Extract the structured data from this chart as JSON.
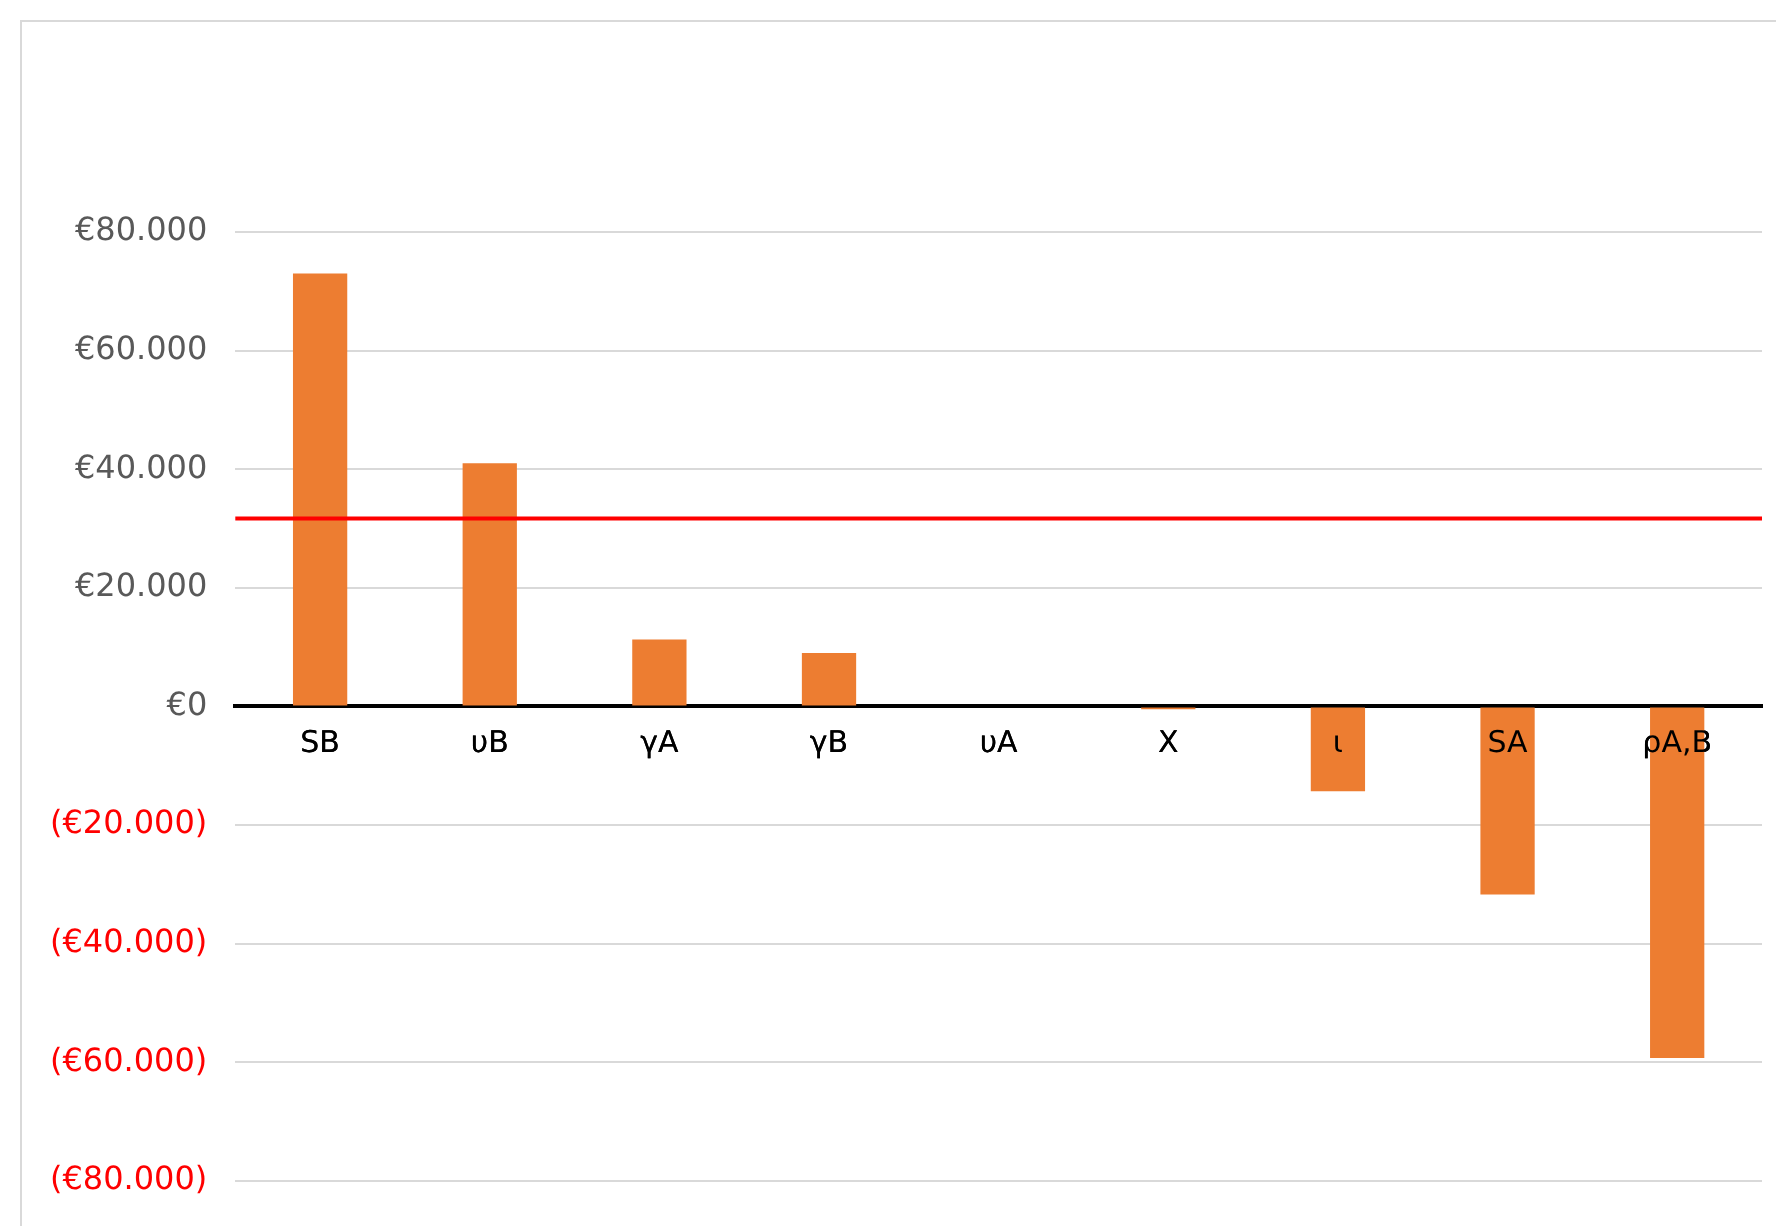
{
  "chart_data": {
    "type": "bar",
    "categories": [
      "SB",
      "υB",
      "γA",
      "γB",
      "υA",
      "X",
      "ι",
      "SA",
      "ρA,B"
    ],
    "values": [
      73000,
      41000,
      11300,
      9000,
      0,
      -500,
      -14300,
      -31700,
      -59300
    ],
    "color": "#ed7d31",
    "ylim": [
      -80000,
      80000
    ],
    "yticks": [
      {
        "value": -80000,
        "label": "(€80.000)"
      },
      {
        "value": -60000,
        "label": "(€60.000)"
      },
      {
        "value": -40000,
        "label": "(€40.000)"
      },
      {
        "value": -20000,
        "label": "(€20.000)"
      },
      {
        "value": 0,
        "label": "€0"
      },
      {
        "value": 20000,
        "label": "€20.000"
      },
      {
        "value": 40000,
        "label": "€40.000"
      },
      {
        "value": 60000,
        "label": "€60.000"
      },
      {
        "value": 80000,
        "label": "€80.000"
      }
    ],
    "ref_lines": [
      {
        "axis": "y",
        "value": 31700,
        "color": "#ff0000"
      }
    ],
    "grid": "y",
    "legend": false
  }
}
